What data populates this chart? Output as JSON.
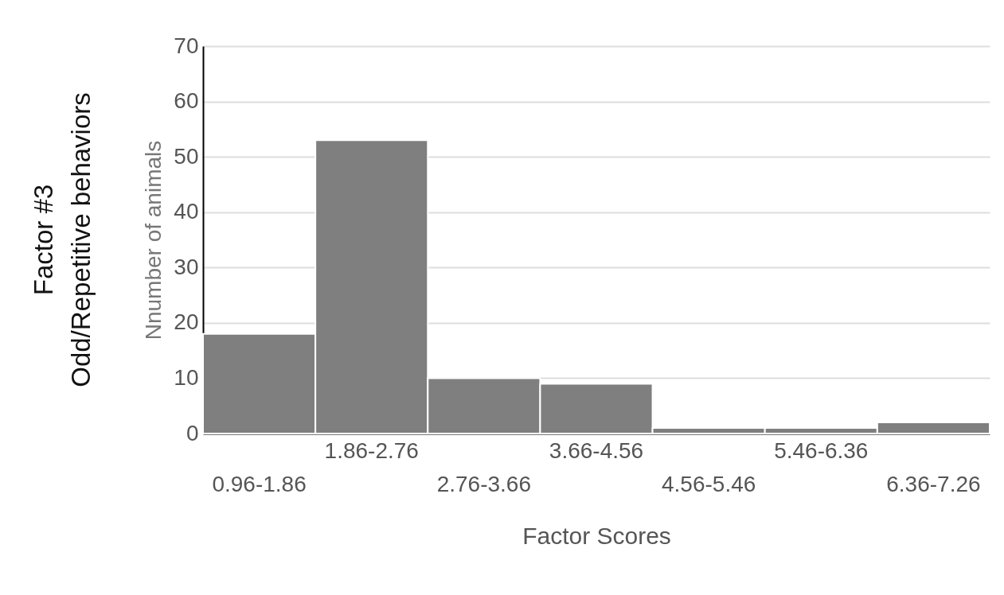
{
  "chart_data": {
    "type": "bar",
    "title": "Factor #3",
    "subtitle": "Odd/Repetitive behaviors",
    "xlabel": "Factor Scores",
    "ylabel": "Nnumber of animals",
    "categories": [
      "0.96-1.86",
      "1.86-2.76",
      "2.76-3.66",
      "3.66-4.56",
      "4.56-5.46",
      "5.46-6.36",
      "6.36-7.26"
    ],
    "values": [
      18,
      53,
      10,
      9,
      1,
      1,
      2
    ],
    "color": "#7f7f7f",
    "ylim": [
      0,
      70
    ],
    "yticks": [
      0,
      10,
      20,
      30,
      40,
      50,
      60,
      70
    ],
    "grid": "y"
  }
}
